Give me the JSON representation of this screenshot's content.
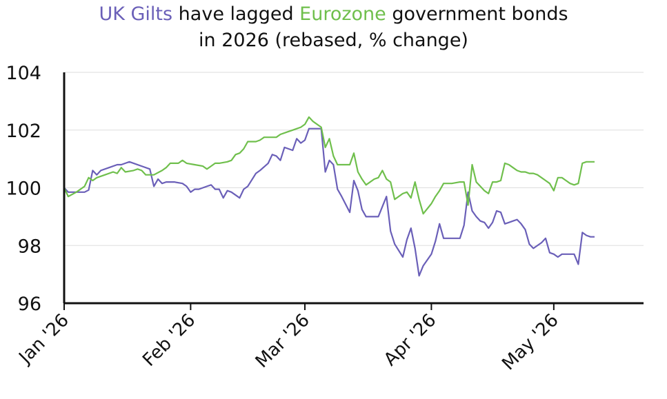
{
  "title": {
    "part1": "UK Gilts",
    "part2": " have lagged ",
    "part3": "Eurozone",
    "part4": " government bonds",
    "line2": "in 2026 (rebased, % change)"
  },
  "colors": {
    "gilts": "#6a5fb8",
    "eurozone": "#6fbf4c",
    "grid": "#dddddd",
    "axis": "#111111"
  },
  "chart_data": {
    "type": "line",
    "title": "UK Gilts have lagged Eurozone government bonds in 2026 (rebased, % change)",
    "xlabel": "",
    "ylabel": "",
    "ylim": [
      96,
      104
    ],
    "yticks": [
      96,
      98,
      100,
      102,
      104
    ],
    "xlim": [
      0,
      142
    ],
    "xticks": [
      {
        "label": "Jan '26",
        "x": 0
      },
      {
        "label": "Feb '26",
        "x": 31
      },
      {
        "label": "Mar '26",
        "x": 59
      },
      {
        "label": "Apr '26",
        "x": 90
      },
      {
        "label": "May '26",
        "x": 120
      }
    ],
    "grid": "horizontal",
    "series": [
      {
        "name": "UK Gilts",
        "color": "#6a5fb8",
        "points": [
          [
            0,
            100
          ],
          [
            1,
            99.85
          ],
          [
            3,
            99.85
          ],
          [
            5,
            99.85
          ],
          [
            6,
            99.92
          ],
          [
            7,
            100.6
          ],
          [
            8,
            100.45
          ],
          [
            9,
            100.6
          ],
          [
            11,
            100.7
          ],
          [
            13,
            100.8
          ],
          [
            14,
            100.8
          ],
          [
            15,
            100.85
          ],
          [
            16,
            100.9
          ],
          [
            17,
            100.85
          ],
          [
            19,
            100.75
          ],
          [
            21,
            100.65
          ],
          [
            22,
            100.05
          ],
          [
            23,
            100.3
          ],
          [
            24,
            100.15
          ],
          [
            25,
            100.2
          ],
          [
            27,
            100.2
          ],
          [
            29,
            100.15
          ],
          [
            30,
            100.05
          ],
          [
            31,
            99.85
          ],
          [
            32,
            99.95
          ],
          [
            33,
            99.95
          ],
          [
            35,
            100.05
          ],
          [
            36,
            100.1
          ],
          [
            37,
            99.95
          ],
          [
            38,
            99.95
          ],
          [
            39,
            99.65
          ],
          [
            40,
            99.9
          ],
          [
            41,
            99.85
          ],
          [
            43,
            99.65
          ],
          [
            44,
            99.95
          ],
          [
            45,
            100.05
          ],
          [
            47,
            100.5
          ],
          [
            48,
            100.6
          ],
          [
            50,
            100.85
          ],
          [
            51,
            101.15
          ],
          [
            52,
            101.1
          ],
          [
            53,
            100.95
          ],
          [
            54,
            101.4
          ],
          [
            56,
            101.3
          ],
          [
            57,
            101.7
          ],
          [
            58,
            101.55
          ],
          [
            59,
            101.65
          ],
          [
            60,
            102.05
          ],
          [
            62,
            102.05
          ],
          [
            63,
            102.05
          ],
          [
            64,
            100.55
          ],
          [
            65,
            100.95
          ],
          [
            66,
            100.8
          ],
          [
            67,
            99.95
          ],
          [
            68,
            99.7
          ],
          [
            70,
            99.15
          ],
          [
            71,
            100.25
          ],
          [
            72,
            99.9
          ],
          [
            73,
            99.25
          ],
          [
            74,
            99.0
          ],
          [
            76,
            99.0
          ],
          [
            77,
            99.0
          ],
          [
            78,
            99.35
          ],
          [
            79,
            99.7
          ],
          [
            80,
            98.5
          ],
          [
            81,
            98.05
          ],
          [
            83,
            97.6
          ],
          [
            84,
            98.2
          ],
          [
            85,
            98.6
          ],
          [
            86,
            97.9
          ],
          [
            87,
            96.95
          ],
          [
            88,
            97.3
          ],
          [
            90,
            97.7
          ],
          [
            91,
            98.15
          ],
          [
            92,
            98.75
          ],
          [
            93,
            98.25
          ],
          [
            95,
            98.25
          ],
          [
            96,
            98.25
          ],
          [
            97,
            98.25
          ],
          [
            98,
            98.7
          ],
          [
            99,
            99.85
          ],
          [
            100,
            99.2
          ],
          [
            101,
            99.0
          ],
          [
            102,
            98.85
          ],
          [
            103,
            98.8
          ],
          [
            104,
            98.6
          ],
          [
            105,
            98.8
          ],
          [
            106,
            99.2
          ],
          [
            107,
            99.15
          ],
          [
            108,
            98.75
          ],
          [
            109,
            98.8
          ],
          [
            110,
            98.85
          ],
          [
            111,
            98.9
          ],
          [
            112,
            98.75
          ],
          [
            113,
            98.55
          ],
          [
            114,
            98.05
          ],
          [
            115,
            97.9
          ],
          [
            117,
            98.1
          ],
          [
            118,
            98.25
          ],
          [
            119,
            97.75
          ],
          [
            120,
            97.7
          ],
          [
            121,
            97.6
          ],
          [
            122,
            97.7
          ],
          [
            123,
            97.7
          ],
          [
            124,
            97.7
          ],
          [
            125,
            97.7
          ],
          [
            126,
            97.35
          ],
          [
            127,
            98.45
          ],
          [
            128,
            98.35
          ],
          [
            129,
            98.3
          ],
          [
            130,
            98.3
          ]
        ]
      },
      {
        "name": "Eurozone",
        "color": "#6fbf4c",
        "points": [
          [
            0,
            100
          ],
          [
            1,
            99.7
          ],
          [
            3,
            99.85
          ],
          [
            5,
            100.05
          ],
          [
            6,
            100.35
          ],
          [
            7,
            100.25
          ],
          [
            8,
            100.35
          ],
          [
            10,
            100.45
          ],
          [
            12,
            100.55
          ],
          [
            13,
            100.5
          ],
          [
            14,
            100.7
          ],
          [
            15,
            100.55
          ],
          [
            17,
            100.6
          ],
          [
            18,
            100.65
          ],
          [
            19,
            100.6
          ],
          [
            20,
            100.45
          ],
          [
            22,
            100.45
          ],
          [
            24,
            100.6
          ],
          [
            25,
            100.7
          ],
          [
            26,
            100.85
          ],
          [
            27,
            100.85
          ],
          [
            28,
            100.85
          ],
          [
            29,
            100.95
          ],
          [
            30,
            100.85
          ],
          [
            32,
            100.8
          ],
          [
            34,
            100.75
          ],
          [
            35,
            100.65
          ],
          [
            36,
            100.75
          ],
          [
            37,
            100.85
          ],
          [
            38,
            100.85
          ],
          [
            40,
            100.9
          ],
          [
            41,
            100.95
          ],
          [
            42,
            101.15
          ],
          [
            43,
            101.2
          ],
          [
            44,
            101.35
          ],
          [
            45,
            101.6
          ],
          [
            47,
            101.6
          ],
          [
            48,
            101.65
          ],
          [
            49,
            101.75
          ],
          [
            50,
            101.75
          ],
          [
            52,
            101.75
          ],
          [
            53,
            101.85
          ],
          [
            55,
            101.95
          ],
          [
            56,
            102.0
          ],
          [
            58,
            102.1
          ],
          [
            59,
            102.2
          ],
          [
            60,
            102.45
          ],
          [
            61,
            102.3
          ],
          [
            63,
            102.1
          ],
          [
            64,
            101.4
          ],
          [
            65,
            101.7
          ],
          [
            66,
            101.1
          ],
          [
            67,
            100.8
          ],
          [
            68,
            100.8
          ],
          [
            69,
            100.8
          ],
          [
            70,
            100.8
          ],
          [
            71,
            101.2
          ],
          [
            72,
            100.55
          ],
          [
            73,
            100.3
          ],
          [
            74,
            100.1
          ],
          [
            76,
            100.3
          ],
          [
            77,
            100.35
          ],
          [
            78,
            100.6
          ],
          [
            79,
            100.3
          ],
          [
            80,
            100.2
          ],
          [
            81,
            99.6
          ],
          [
            83,
            99.8
          ],
          [
            84,
            99.85
          ],
          [
            85,
            99.65
          ],
          [
            86,
            100.2
          ],
          [
            87,
            99.6
          ],
          [
            88,
            99.1
          ],
          [
            90,
            99.45
          ],
          [
            91,
            99.7
          ],
          [
            92,
            99.9
          ],
          [
            93,
            100.15
          ],
          [
            94,
            100.15
          ],
          [
            95,
            100.15
          ],
          [
            97,
            100.2
          ],
          [
            98,
            100.2
          ],
          [
            99,
            99.4
          ],
          [
            100,
            100.8
          ],
          [
            101,
            100.2
          ],
          [
            102,
            100.05
          ],
          [
            103,
            99.9
          ],
          [
            104,
            99.8
          ],
          [
            105,
            100.2
          ],
          [
            106,
            100.2
          ],
          [
            107,
            100.25
          ],
          [
            108,
            100.85
          ],
          [
            109,
            100.8
          ],
          [
            110,
            100.7
          ],
          [
            111,
            100.6
          ],
          [
            112,
            100.55
          ],
          [
            113,
            100.55
          ],
          [
            114,
            100.5
          ],
          [
            115,
            100.5
          ],
          [
            116,
            100.45
          ],
          [
            117,
            100.35
          ],
          [
            118,
            100.25
          ],
          [
            119,
            100.15
          ],
          [
            120,
            99.9
          ],
          [
            121,
            100.35
          ],
          [
            122,
            100.35
          ],
          [
            123,
            100.25
          ],
          [
            124,
            100.15
          ],
          [
            125,
            100.1
          ],
          [
            126,
            100.15
          ],
          [
            127,
            100.85
          ],
          [
            128,
            100.9
          ],
          [
            129,
            100.9
          ],
          [
            130,
            100.9
          ]
        ]
      }
    ]
  }
}
